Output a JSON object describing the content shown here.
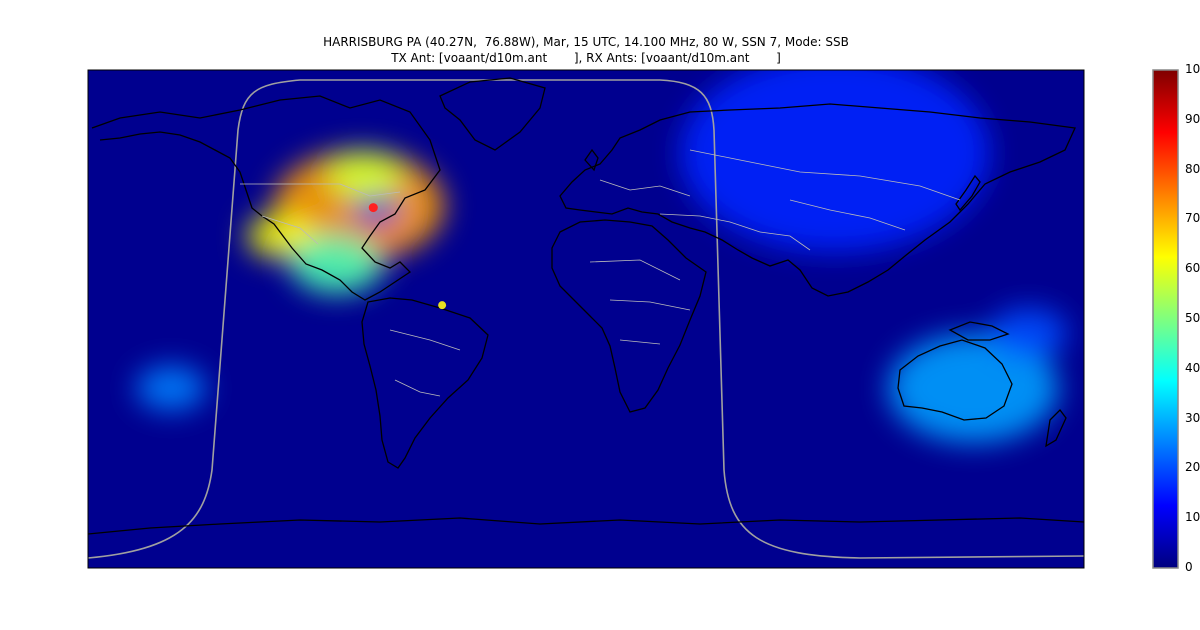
{
  "title": {
    "line1": "HARRISBURG PA (40.27N,  76.88W), Mar, 15 UTC, 14.100 MHz, 80 W, SSN 7, Mode: SSB",
    "line2": "TX Ant: [voaant/d10m.ant       ], RX Ants: [voaant/d10m.ant       ]"
  },
  "colorbar": {
    "min": 0,
    "max": 100,
    "ticks": [
      "100",
      "90",
      "80",
      "70",
      "60",
      "50",
      "40",
      "30",
      "20",
      "10",
      "0"
    ],
    "colormap": "jet"
  },
  "map": {
    "projection": "equirectangular",
    "background_color": "#00008f",
    "coastline_color": "#000000",
    "border_color": "#bbbbbb",
    "terminator_color": "#a0a0a0",
    "tx_marker": {
      "name": "Harrisburg PA",
      "lat": 40.27,
      "lon": -76.88,
      "color": "#ff2020"
    },
    "rx_marker": {
      "lat": 5.0,
      "lon": -52.0,
      "color": "#e8e020"
    },
    "reliability_zones": [
      {
        "lat": 41,
        "lon": -82,
        "value": 72,
        "radius": 22
      },
      {
        "lat": 40,
        "lon": -76,
        "value": 10,
        "radius": 6
      },
      {
        "lat": 30,
        "lon": -110,
        "value": 62,
        "radius": 9
      },
      {
        "lat": 25,
        "lon": -82,
        "value": 82,
        "radius": 8
      },
      {
        "lat": 20,
        "lon": -90,
        "value": 45,
        "radius": 12
      },
      {
        "lat": 52,
        "lon": -80,
        "value": 58,
        "radius": 10
      },
      {
        "lat": -25,
        "lon": -150,
        "value": 25,
        "radius": 9
      },
      {
        "lat": -25,
        "lon": 140,
        "value": 28,
        "radius": 22
      },
      {
        "lat": -5,
        "lon": 160,
        "value": 20,
        "radius": 10
      },
      {
        "lat": 60,
        "lon": 90,
        "value": 16,
        "radius": 40
      }
    ]
  }
}
